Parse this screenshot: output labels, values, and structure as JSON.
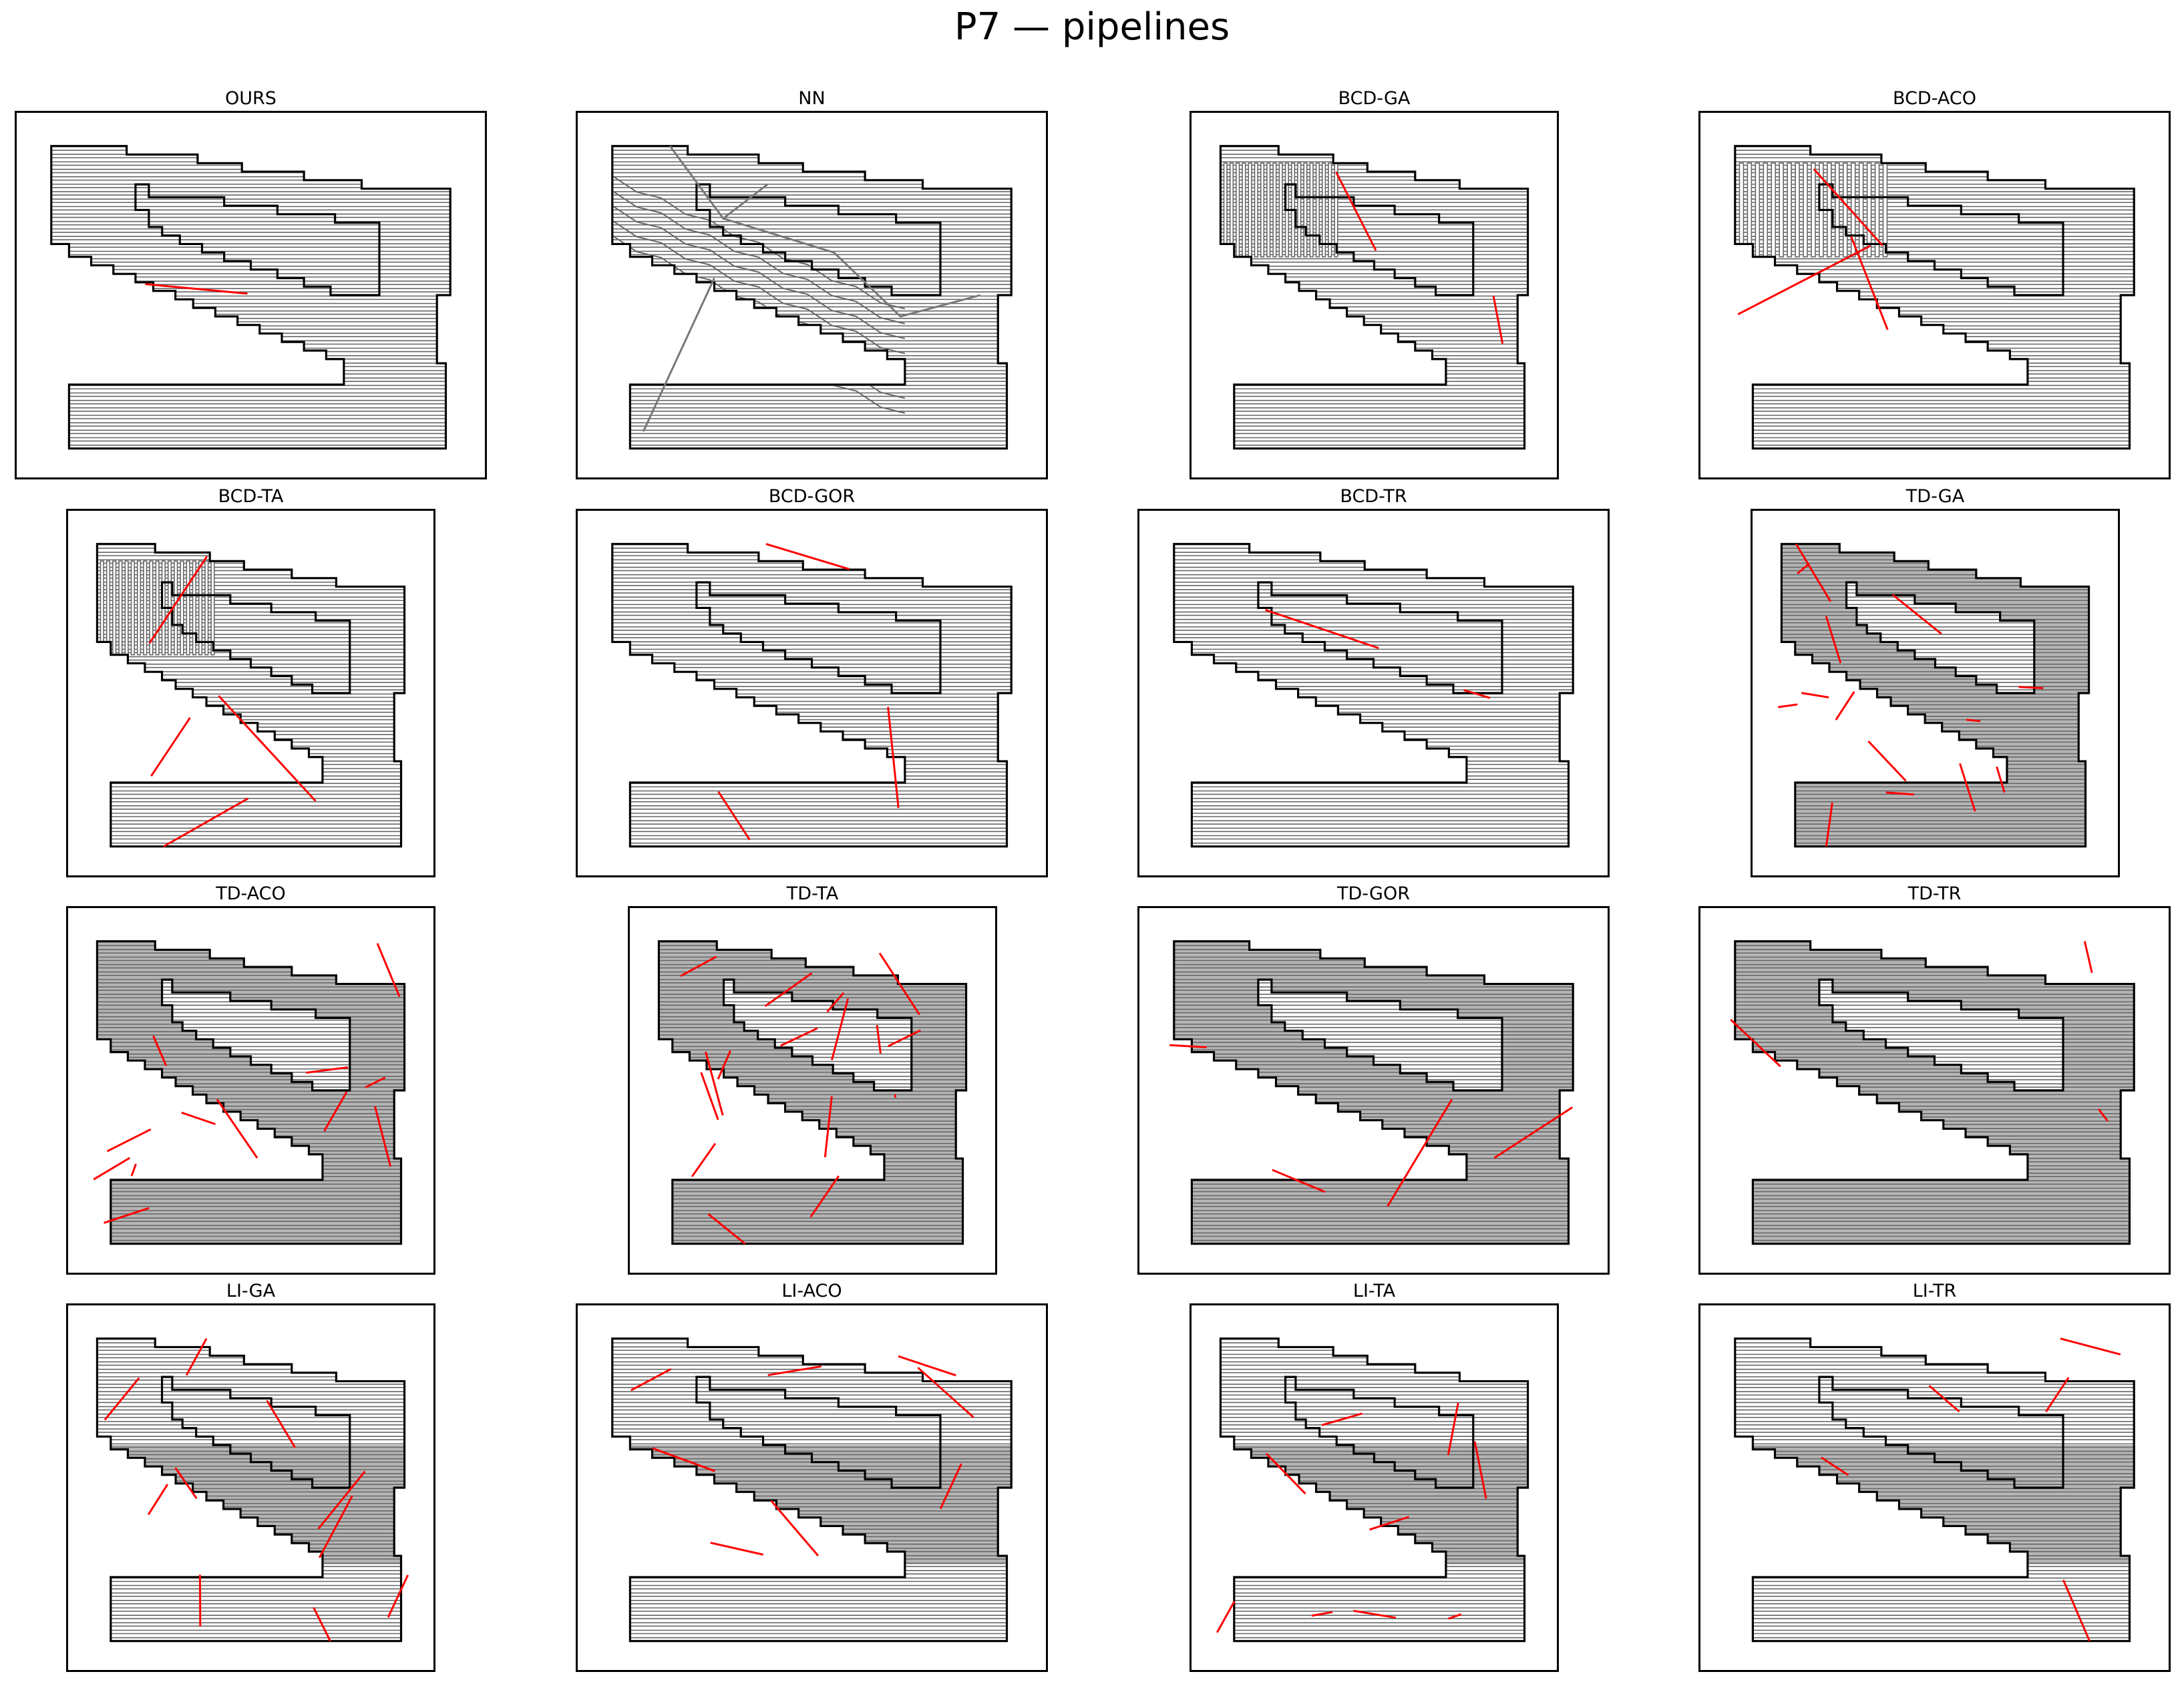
{
  "figure": {
    "title": "P7 — pipelines"
  },
  "colors": {
    "outline": "#000000",
    "fill_light": "#ffffff",
    "fill_dark": "#b5b5b5",
    "path": "#666666",
    "transition": "#ff0000",
    "nn_path": "#777777"
  },
  "panels": [
    {
      "label": "OURS",
      "shade": "light",
      "raster": "horizontal",
      "red": 1
    },
    {
      "label": "NN",
      "shade": "light",
      "raster": "zigzag",
      "red": 0
    },
    {
      "label": "BCD-GA",
      "shade": "light",
      "raster": "mixed",
      "red": 2
    },
    {
      "label": "BCD-ACO",
      "shade": "light",
      "raster": "mixed",
      "red": 3
    },
    {
      "label": "BCD-TA",
      "shade": "light",
      "raster": "mixed",
      "red": 4
    },
    {
      "label": "BCD-GOR",
      "shade": "light",
      "raster": "horizontal",
      "red": 3
    },
    {
      "label": "BCD-TR",
      "shade": "light",
      "raster": "horizontal",
      "red": 2
    },
    {
      "label": "TD-GA",
      "shade": "dark",
      "raster": "horizontal",
      "red": 14
    },
    {
      "label": "TD-ACO",
      "shade": "dark",
      "raster": "horizontal",
      "red": 12
    },
    {
      "label": "TD-TA",
      "shade": "dark",
      "raster": "horizontal",
      "red": 16
    },
    {
      "label": "TD-GOR",
      "shade": "dark",
      "raster": "horizontal",
      "red": 4
    },
    {
      "label": "TD-TR",
      "shade": "dark",
      "raster": "horizontal",
      "red": 3
    },
    {
      "label": "LI-GA",
      "shade": "band",
      "raster": "horizontal",
      "red": 10
    },
    {
      "label": "LI-ACO",
      "shade": "band",
      "raster": "horizontal",
      "red": 8
    },
    {
      "label": "LI-TA",
      "shade": "band",
      "raster": "horizontal",
      "red": 9
    },
    {
      "label": "LI-TR",
      "shade": "band",
      "raster": "horizontal",
      "red": 5
    }
  ]
}
